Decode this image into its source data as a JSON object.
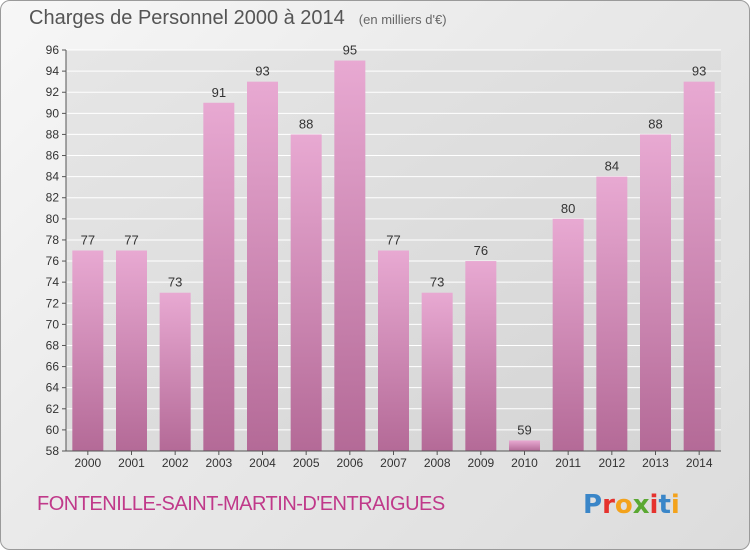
{
  "title": "Charges de Personnel 2000 à 2014",
  "subtitle": "(en milliers d'€)",
  "location": "FONTENILLE-SAINT-MARTIN-D'ENTRAIGUES",
  "logo": {
    "text": "Proxiti",
    "letter_colors": [
      "#3a86c8",
      "#e5322d",
      "#f3a21b",
      "#5aa832",
      "#e5322d",
      "#3a86c8",
      "#f3a21b"
    ]
  },
  "colors": {
    "bar_light": "#e8a9d2",
    "bar_dark": "#b46a97",
    "grid": "#ffffff",
    "axis_text": "#333333"
  },
  "chart_data": {
    "type": "bar",
    "title": "Charges de Personnel 2000 à 2014",
    "subtitle": "(en milliers d'€)",
    "xlabel": "",
    "ylabel": "",
    "categories": [
      "2000",
      "2001",
      "2002",
      "2003",
      "2004",
      "2005",
      "2006",
      "2007",
      "2008",
      "2009",
      "2010",
      "2011",
      "2012",
      "2013",
      "2014"
    ],
    "values": [
      77,
      77,
      73,
      91,
      93,
      88,
      95,
      77,
      73,
      76,
      59,
      80,
      84,
      88,
      93
    ],
    "ylim": [
      58,
      96
    ],
    "yticks": [
      58,
      60,
      62,
      64,
      66,
      68,
      70,
      72,
      74,
      76,
      78,
      80,
      82,
      84,
      86,
      88,
      90,
      92,
      94,
      96
    ],
    "grid": true,
    "data_labels": true
  }
}
